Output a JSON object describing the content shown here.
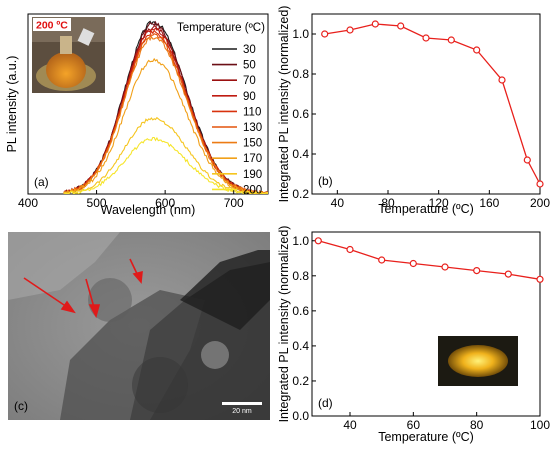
{
  "colors": {
    "marker": "#e8201c",
    "series_palette": [
      "#1a1a1a",
      "#6b0f16",
      "#9b1010",
      "#bf1b12",
      "#d8320d",
      "#e4540c",
      "#ec7b14",
      "#f1a019",
      "#f5c51f",
      "#f6e52b"
    ]
  },
  "chart_data": [
    {
      "type": "line",
      "panel": "(a)",
      "xlabel": "Wavelength (nm)",
      "ylabel": "PL intensity (a.u.)",
      "xlim": [
        400,
        750
      ],
      "xticks": [
        "400",
        "500",
        "600",
        "700"
      ],
      "legend": {
        "title": "Temperature (ºC)",
        "placement": "top-right"
      },
      "inset": {
        "label": "200 ºC",
        "kind": "photo"
      },
      "peak_nm": 583,
      "series": [
        {
          "name": "30",
          "peak": 1.0
        },
        {
          "name": "50",
          "peak": 0.99
        },
        {
          "name": "70",
          "peak": 0.97
        },
        {
          "name": "90",
          "peak": 0.96
        },
        {
          "name": "110",
          "peak": 0.94
        },
        {
          "name": "130",
          "peak": 0.93
        },
        {
          "name": "150",
          "peak": 0.91
        },
        {
          "name": "170",
          "peak": 0.78
        },
        {
          "name": "190",
          "peak": 0.44
        },
        {
          "name": "200",
          "peak": 0.32
        }
      ]
    },
    {
      "type": "line",
      "panel": "(b)",
      "xlabel": "Temperature (ºC)",
      "ylabel": "Integrated PL intensity (normalized)",
      "xlim": [
        20,
        200
      ],
      "ylim": [
        0.2,
        1.1
      ],
      "xticks": [
        "40",
        "80",
        "120",
        "160",
        "200"
      ],
      "yticks": [
        "0.2",
        "0.4",
        "0.6",
        "0.8",
        "1.0"
      ],
      "x": [
        30,
        50,
        70,
        90,
        110,
        130,
        150,
        170,
        190,
        200
      ],
      "y": [
        1.0,
        1.02,
        1.05,
        1.04,
        0.98,
        0.97,
        0.92,
        0.77,
        0.37,
        0.25
      ]
    },
    {
      "type": "line",
      "panel": "(d)",
      "xlabel": "Temperature (ºC)",
      "ylabel": "Integrated PL intensity (normalized)",
      "xlim": [
        28,
        100
      ],
      "ylim": [
        0.0,
        1.05
      ],
      "xticks": [
        "40",
        "60",
        "80",
        "100"
      ],
      "yticks": [
        "0.0",
        "0.2",
        "0.4",
        "0.6",
        "0.8",
        "1.0"
      ],
      "x": [
        30,
        40,
        50,
        60,
        70,
        80,
        90,
        100
      ],
      "y": [
        1.0,
        0.95,
        0.89,
        0.87,
        0.85,
        0.83,
        0.81,
        0.78
      ]
    }
  ],
  "tem_panel": {
    "label": "(c)",
    "scale_bar": "20 nm"
  }
}
